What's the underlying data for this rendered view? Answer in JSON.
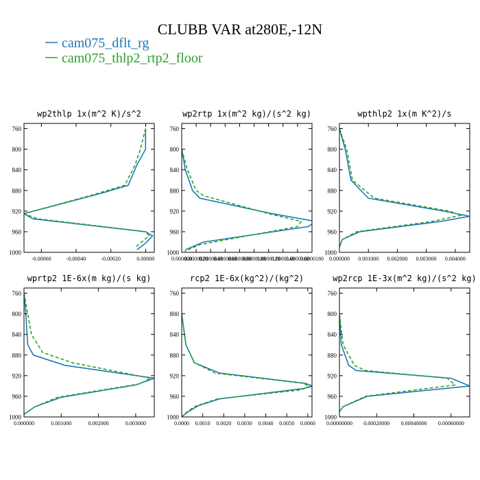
{
  "figure": {
    "title": "CLUBB VAR at280E,-12N",
    "legend": [
      {
        "label": "cam075_dflt_rg",
        "color": "#1f77b4",
        "dash": "solid"
      },
      {
        "label": "cam075_thlp2_rtp2_floor",
        "color": "#2ca02c",
        "dash": "dashed"
      }
    ]
  },
  "chart_data": [
    {
      "type": "line",
      "title": "wp2thlp  1x(m^2 K)/s^2",
      "xlim": [
        -0.0007,
        5e-05
      ],
      "ylim": [
        1000,
        750
      ],
      "xticks": [
        -0.0006,
        -0.0004,
        -0.0002,
        0.0
      ],
      "xtick_labels": [
        "-0.00060",
        "-0.00040",
        "-0.00020",
        "0.00000"
      ],
      "yticks": [
        760,
        800,
        840,
        880,
        920,
        960,
        1000
      ],
      "series": [
        {
          "x": [
            0.0,
            0.0,
            -5e-05,
            -0.0001,
            -0.00025,
            -0.0007,
            -0.00065,
            0.0,
            4e-05,
            0.0,
            -5e-05
          ],
          "y": [
            760,
            800,
            830,
            870,
            885,
            925,
            935,
            960,
            968,
            982,
            995
          ]
        },
        {
          "x": [
            0.0,
            -3e-05,
            -6e-05,
            -0.00012,
            -0.00032,
            -0.0007,
            -0.00062,
            0.0,
            2e-05,
            -3e-05,
            -6e-05
          ],
          "y": [
            760,
            800,
            830,
            870,
            890,
            925,
            935,
            960,
            968,
            982,
            990
          ]
        }
      ]
    },
    {
      "type": "line",
      "title": "wp2rtp  1x(m^2 kg)/(s^2 kg)",
      "xlim": [
        0.0,
        1.8e-05
      ],
      "ylim": [
        1000,
        750
      ],
      "xticks": [
        0.0,
        2e-06,
        4e-06,
        6e-06,
        8e-06,
        1e-05,
        1.2e-05,
        1.4e-05,
        1.6e-05,
        1.8e-05
      ],
      "xtick_labels": [
        "0.000000",
        "0.0000020",
        "0.0000040",
        "0.0000060",
        "0.0000080",
        "0.0000100",
        "0.0000120",
        "0.0000140",
        "0.0000160",
        "0.0000180"
      ],
      "yticks": [
        760,
        800,
        840,
        880,
        920,
        960,
        1000
      ],
      "series": [
        {
          "x": [
            0.0,
            5e-07,
            1.5e-06,
            2.5e-06,
            1.25e-05,
            1.85e-05,
            1.75e-05,
            3e-06,
            5e-07
          ],
          "y": [
            800,
            840,
            880,
            895,
            925,
            940,
            950,
            980,
            995
          ]
        },
        {
          "x": [
            0.0,
            8e-07,
            2e-06,
            3e-06,
            1.2e-05,
            1.65e-05,
            1.6e-05,
            2.5e-06,
            4e-07
          ],
          "y": [
            800,
            840,
            880,
            890,
            925,
            940,
            950,
            985,
            998
          ]
        }
      ]
    },
    {
      "type": "line",
      "title": "wpthlp2  1x(m K^2)/s",
      "xlim": [
        0.0,
        0.0045
      ],
      "ylim": [
        1000,
        750
      ],
      "xticks": [
        0.0,
        0.001,
        0.002,
        0.003,
        0.004
      ],
      "xtick_labels": [
        "0.000000",
        "0.001000",
        "0.002000",
        "0.003000",
        "0.004000"
      ],
      "yticks": [
        760,
        800,
        840,
        880,
        920,
        960,
        1000
      ],
      "series": [
        {
          "x": [
            0.0,
            0.0002,
            0.0004,
            0.001,
            0.0036,
            0.0045,
            0.0035,
            0.0007,
            0.0001,
            0.0
          ],
          "y": [
            760,
            800,
            860,
            895,
            920,
            930,
            940,
            960,
            975,
            990
          ]
        },
        {
          "x": [
            0.0,
            0.00025,
            0.00045,
            0.0012,
            0.0038,
            0.0042,
            0.0032,
            0.0006,
            0.0001,
            0.0
          ],
          "y": [
            760,
            800,
            860,
            895,
            920,
            928,
            940,
            960,
            975,
            990
          ]
        }
      ]
    },
    {
      "type": "line",
      "title": "wprtp2  1E-6x(m kg)/(s kg)",
      "xlim": [
        0.0,
        0.0035
      ],
      "ylim": [
        1000,
        750
      ],
      "xticks": [
        0.0,
        0.001,
        0.002,
        0.003
      ],
      "xtick_labels": [
        "0.000000",
        "0.001000",
        "0.002000",
        "0.003000"
      ],
      "yticks": [
        760,
        800,
        840,
        880,
        920,
        960,
        1000
      ],
      "series": [
        {
          "x": [
            0.0,
            5e-05,
            0.0001,
            0.00025,
            0.0011,
            0.0035,
            0.003,
            0.001,
            0.0003,
            0.0
          ],
          "y": [
            760,
            800,
            860,
            880,
            900,
            925,
            938,
            962,
            980,
            995
          ]
        },
        {
          "x": [
            0.0,
            0.0001,
            0.0002,
            0.0005,
            0.0013,
            0.0034,
            0.0031,
            0.0009,
            0.0003,
            0.0
          ],
          "y": [
            760,
            800,
            840,
            875,
            895,
            925,
            936,
            962,
            980,
            995
          ]
        }
      ]
    },
    {
      "type": "line",
      "title": "rcp2  1E-6x(kg^2)/(kg^2)",
      "xlim": [
        0.0,
        0.0062
      ],
      "ylim": [
        1000,
        750
      ],
      "xticks": [
        0.0,
        0.001,
        0.002,
        0.003,
        0.004,
        0.005,
        0.006
      ],
      "xtick_labels": [
        "0.0000",
        "0.0010",
        "0.0020",
        "0.0030",
        "0.0040",
        "0.0050",
        "0.0060"
      ],
      "yticks": [
        760,
        800,
        840,
        880,
        920,
        960,
        1000
      ],
      "series": [
        {
          "x": [
            0.0,
            0.0002,
            0.0006,
            0.0018,
            0.0059,
            0.0062,
            0.0058,
            0.0018,
            0.0008,
            0.0003,
            0.0
          ],
          "y": [
            800,
            860,
            895,
            915,
            935,
            940,
            945,
            965,
            978,
            990,
            1000
          ]
        },
        {
          "x": [
            0.0,
            0.0002,
            0.0006,
            0.0016,
            0.0058,
            0.0061,
            0.0056,
            0.0017,
            0.0006,
            0.0002,
            0.0
          ],
          "y": [
            800,
            860,
            895,
            915,
            935,
            942,
            948,
            965,
            980,
            992,
            1000
          ]
        }
      ]
    },
    {
      "type": "line",
      "title": "wp2rcp  1E-3x(m^2 kg)/(s^2 kg)",
      "xlim": [
        0.0,
        0.0007
      ],
      "ylim": [
        1000,
        750
      ],
      "xticks": [
        0.0,
        0.0002,
        0.0004,
        0.0006
      ],
      "xtick_labels": [
        "0.00000000",
        "0.00020000",
        "0.00040000",
        "0.00060000"
      ],
      "yticks": [
        760,
        800,
        840,
        880,
        920,
        960,
        1000
      ],
      "series": [
        {
          "x": [
            0.0,
            1e-05,
            3e-05,
            5e-05,
            9e-05,
            0.0006,
            0.0007,
            0.00015,
            2e-05,
            0.0
          ],
          "y": [
            800,
            860,
            880,
            900,
            910,
            925,
            940,
            960,
            980,
            990
          ]
        },
        {
          "x": [
            0.0,
            2e-05,
            5e-05,
            8e-05,
            0.00014,
            0.00058,
            0.00062,
            0.00014,
            2e-05,
            0.0
          ],
          "y": [
            800,
            860,
            880,
            900,
            910,
            925,
            938,
            960,
            980,
            990
          ]
        }
      ]
    }
  ]
}
